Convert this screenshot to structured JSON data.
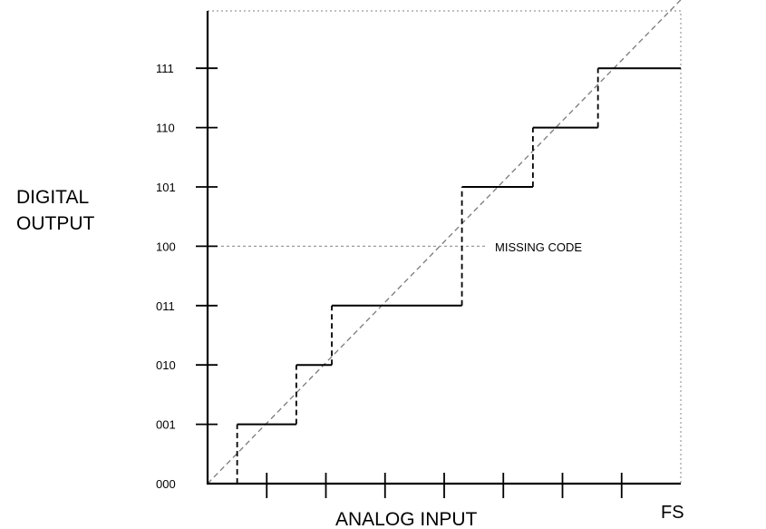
{
  "chart_data": {
    "type": "line",
    "y_axis_title_lines": [
      "DIGITAL",
      "OUTPUT"
    ],
    "x_axis_title": "ANALOG INPUT",
    "x_end_label": "FS",
    "y_tick_labels": [
      "000",
      "001",
      "010",
      "011",
      "100",
      "101",
      "110",
      "111"
    ],
    "x_divisions": 8,
    "annotation": {
      "text": "MISSING CODE",
      "code_index": 4
    },
    "transfer_function": [
      {
        "code": "001",
        "start": 0.5,
        "end": 1.5
      },
      {
        "code": "010",
        "start": 1.5,
        "end": 2.1
      },
      {
        "code": "011",
        "start": 2.1,
        "end": 4.3
      },
      {
        "code": "101",
        "start": 4.3,
        "end": 5.5
      },
      {
        "code": "110",
        "start": 5.5,
        "end": 6.6
      },
      {
        "code": "111",
        "start": 6.6,
        "end": 8.0
      }
    ],
    "ideal_line": {
      "from": [
        0,
        0
      ],
      "to": [
        8,
        8
      ]
    }
  }
}
